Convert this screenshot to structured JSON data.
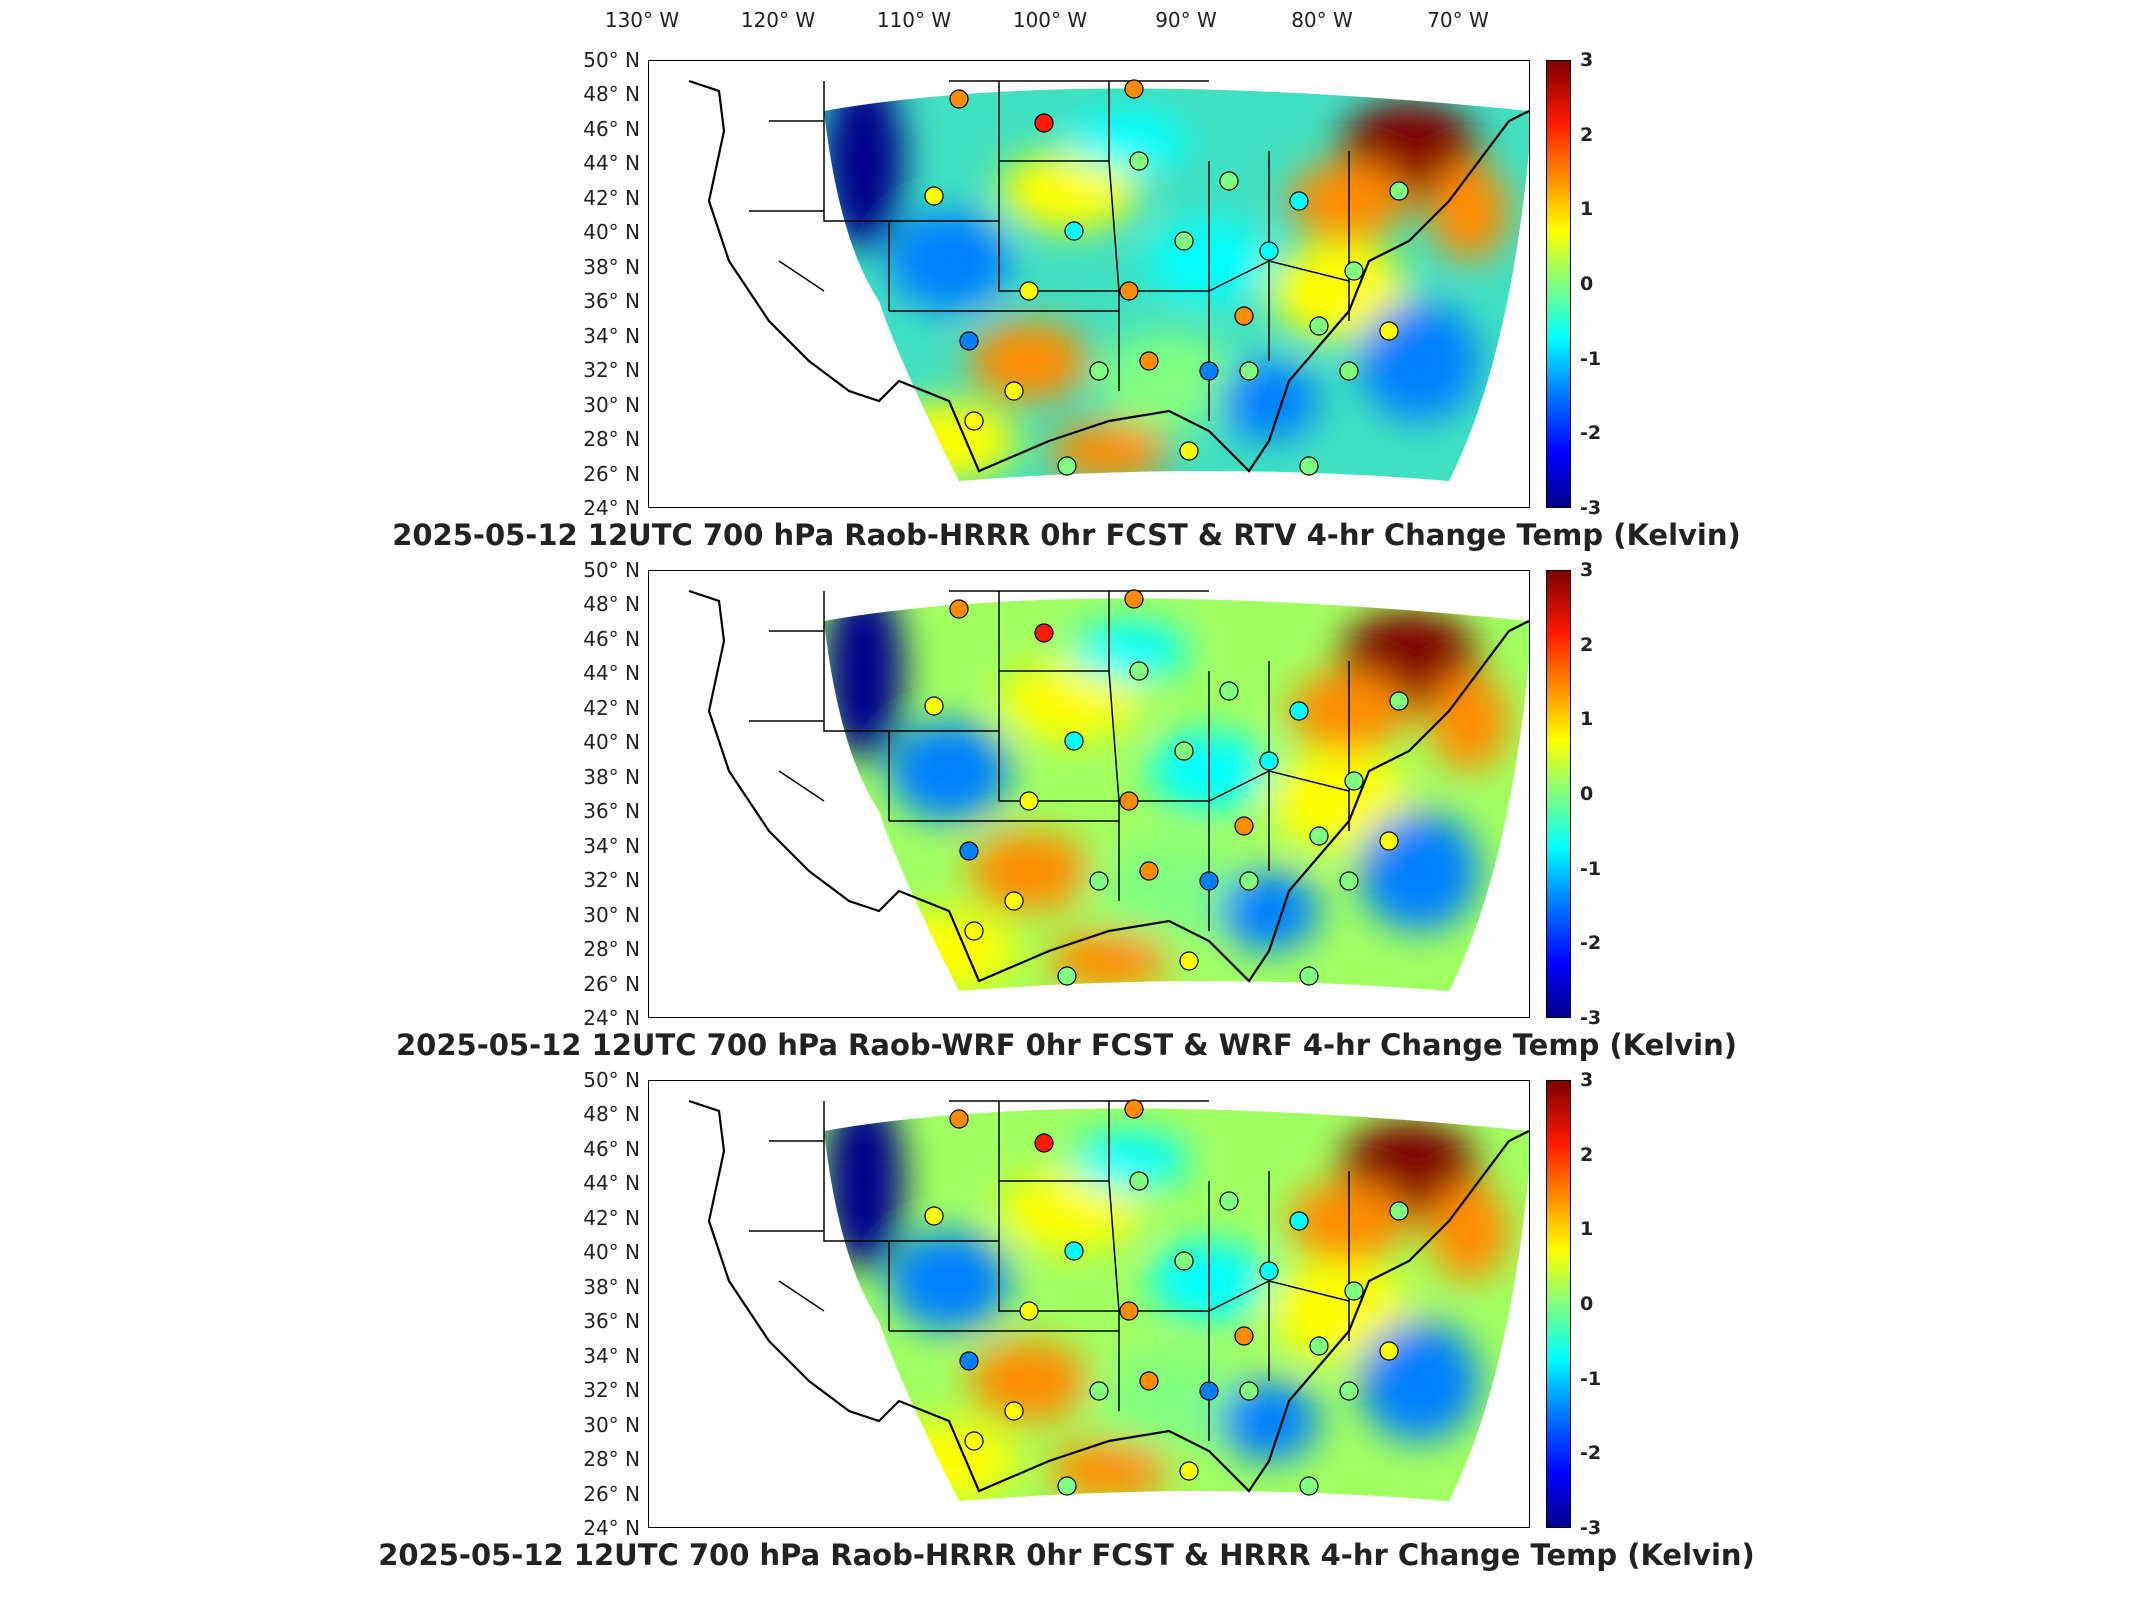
{
  "map": {
    "lon_labels": [
      "130° W",
      "120° W",
      "110° W",
      "100° W",
      "90° W",
      "80° W",
      "70° W"
    ],
    "lat_labels": [
      "50° N",
      "48° N",
      "46° N",
      "44° N",
      "42° N",
      "40° N",
      "38° N",
      "36° N",
      "34° N",
      "32° N",
      "30° N",
      "28° N",
      "26° N",
      "24° N"
    ],
    "colorbar_ticks": [
      "3",
      "2",
      "1",
      "0",
      "-1",
      "-2",
      "-3"
    ],
    "colorbar_range": [
      -3,
      3
    ],
    "colors": {
      "high": "#7f0000",
      "warm": "#ff1a00",
      "orange": "#ff8c00",
      "yellow": "#ffff00",
      "green": "#80ff80",
      "cyan": "#00ffff",
      "blue": "#0080ff",
      "low": "#00008b"
    }
  },
  "panels": [
    {
      "title": "2025-05-12 12UTC 700 hPa Raob-HRRR 0hr FCST & RTV 4-hr Change Temp (Kelvin)"
    },
    {
      "title": "2025-05-12 12UTC 700 hPa Raob-WRF 0hr FCST & WRF 4-hr Change Temp (Kelvin)"
    },
    {
      "title": "2025-05-12 12UTC 700 hPa Raob-HRRR 0hr FCST & HRRR 4-hr Change Temp (Kelvin)"
    }
  ]
}
